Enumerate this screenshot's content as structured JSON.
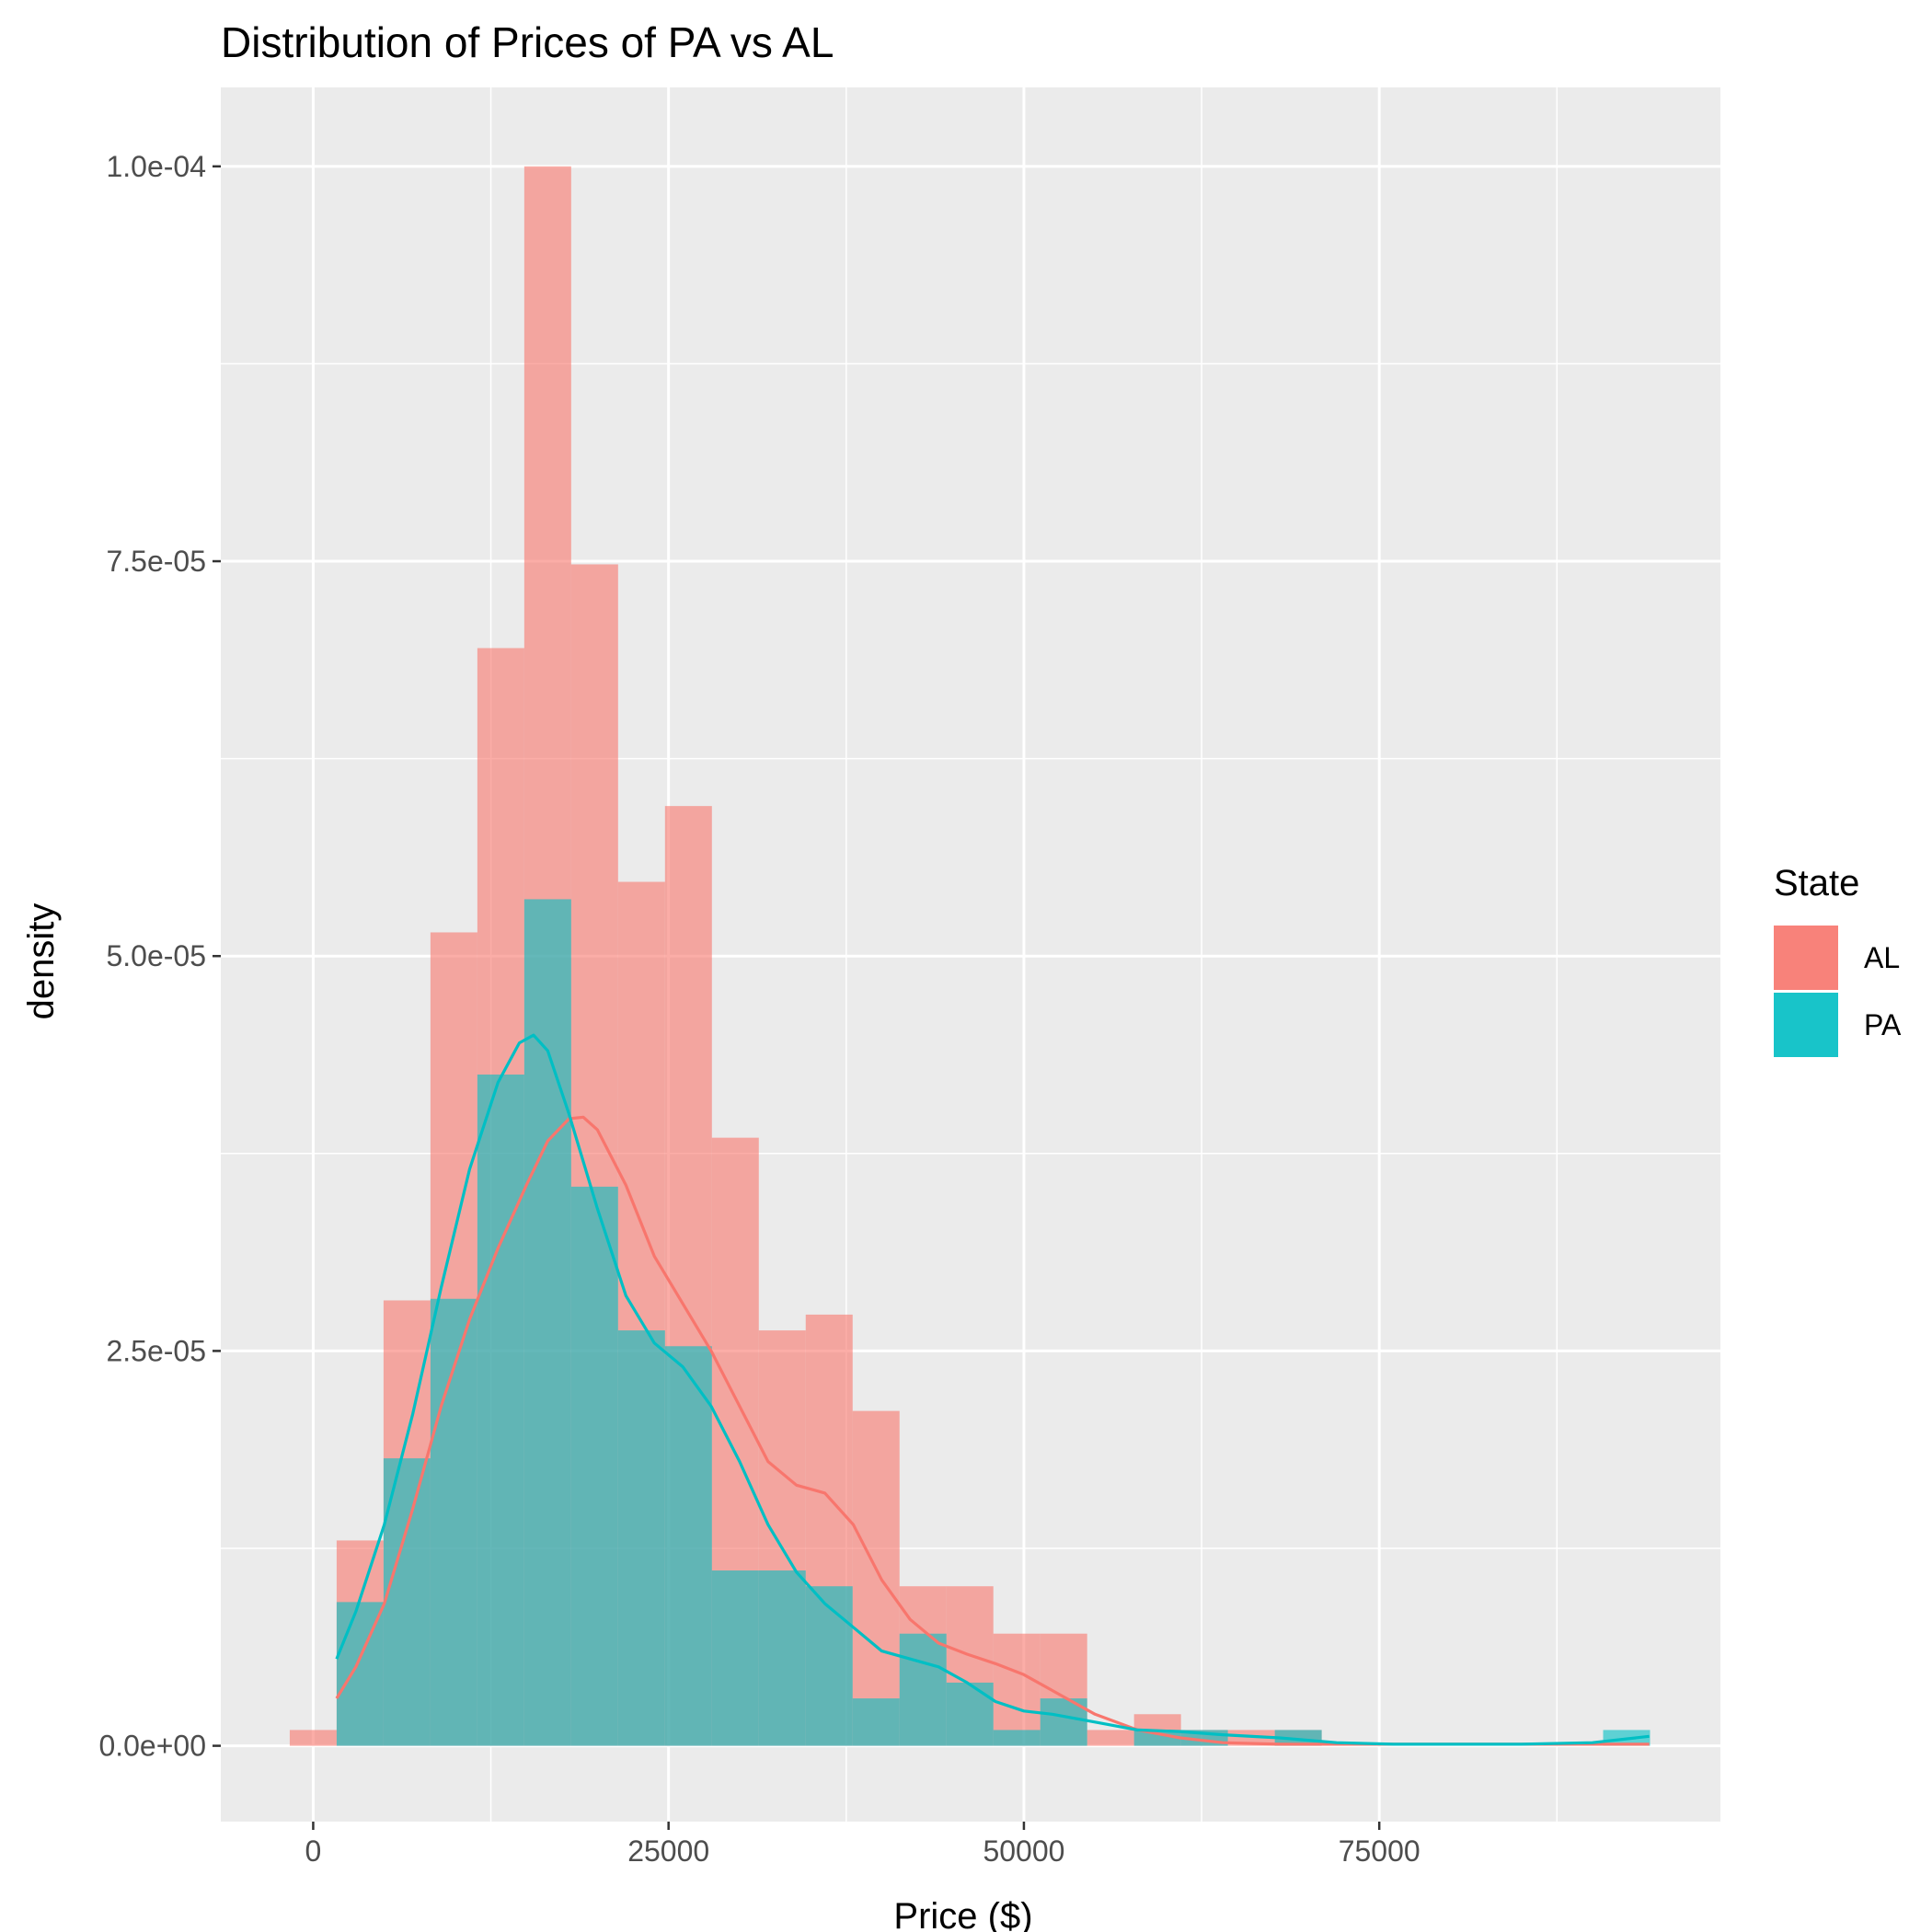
{
  "chart_data": {
    "type": "histogram",
    "title": "Distribution of Prices of PA vs AL",
    "xlabel": "Price ($)",
    "ylabel": "density",
    "xlim": [
      -6500,
      99000
    ],
    "ylim": [
      -4.8e-06,
      0.000105
    ],
    "x_ticks": [
      {
        "value": 0,
        "label": "0"
      },
      {
        "value": 25000,
        "label": "25000"
      },
      {
        "value": 50000,
        "label": "50000"
      },
      {
        "value": 75000,
        "label": "75000"
      }
    ],
    "x_minor": [
      12500,
      37500,
      62500,
      87500
    ],
    "y_ticks": [
      {
        "value": 0,
        "label": "0.0e+00"
      },
      {
        "value": 2.5e-05,
        "label": "2.5e-05"
      },
      {
        "value": 5e-05,
        "label": "5.0e-05"
      },
      {
        "value": 7.5e-05,
        "label": "7.5e-05"
      },
      {
        "value": 0.0001,
        "label": "1.0e-04"
      }
    ],
    "y_minor": [
      1.25e-05,
      3.75e-05,
      6.25e-05,
      8.75e-05
    ],
    "grid": true,
    "legend": {
      "title": "State",
      "position": "right"
    },
    "bin_start": -1650,
    "bin_width": 3300,
    "series": [
      {
        "name": "AL",
        "color": "#F8766D",
        "histogram": [
          1e-06,
          1.3e-05,
          2.82e-05,
          5.15e-05,
          6.95e-05,
          0.0001,
          7.48e-05,
          5.47e-05,
          5.95e-05,
          3.85e-05,
          2.63e-05,
          2.73e-05,
          2.12e-05,
          1.01e-05,
          1.01e-05,
          7.1e-06,
          7.1e-06,
          1e-06,
          2e-06,
          1e-06,
          1e-06,
          1e-06,
          0,
          0,
          0,
          0,
          0,
          0,
          0
        ],
        "density_x": [
          1650,
          3000,
          5000,
          7000,
          9000,
          11000,
          13000,
          15000,
          16500,
          18000,
          19000,
          20000,
          22000,
          24000,
          26000,
          28000,
          30000,
          32000,
          34000,
          36000,
          38000,
          40000,
          42000,
          44000,
          46000,
          48000,
          50000,
          52000,
          55000,
          58000,
          61000,
          64000,
          68000,
          72000,
          76000,
          80000,
          85000,
          90000,
          94000
        ],
        "density_y": [
          3e-06,
          5e-06,
          9e-06,
          1.5e-05,
          2.15e-05,
          2.7e-05,
          3.15e-05,
          3.55e-05,
          3.83e-05,
          3.97e-05,
          3.98e-05,
          3.9e-05,
          3.55e-05,
          3.1e-05,
          2.8e-05,
          2.5e-05,
          2.15e-05,
          1.8e-05,
          1.65e-05,
          1.6e-05,
          1.4e-05,
          1.05e-05,
          8e-06,
          6.5e-06,
          5.8e-06,
          5.2e-06,
          4.5e-06,
          3.5e-06,
          2e-06,
          1e-06,
          5e-07,
          2e-07,
          1e-07,
          1e-07,
          1e-07,
          1e-07,
          1e-07,
          1e-07,
          1e-07
        ]
      },
      {
        "name": "PA",
        "color": "#00BFC4",
        "histogram": [
          0,
          9.1e-06,
          1.82e-05,
          2.83e-05,
          4.25e-05,
          5.36e-05,
          3.54e-05,
          2.63e-05,
          2.53e-05,
          1.11e-05,
          1.11e-05,
          1.01e-05,
          3e-06,
          7.1e-06,
          4e-06,
          1e-06,
          3e-06,
          0,
          1e-06,
          1e-06,
          0,
          1e-06,
          0,
          0,
          0,
          0,
          0,
          0,
          1e-06
        ],
        "density_x": [
          1650,
          3000,
          5000,
          7000,
          9000,
          11000,
          13000,
          14500,
          15500,
          16500,
          18000,
          20000,
          22000,
          24000,
          26000,
          28000,
          30000,
          32000,
          34000,
          36000,
          38000,
          40000,
          42000,
          44000,
          46000,
          48000,
          50000,
          52000,
          55000,
          58000,
          61000,
          64000,
          68000,
          72000,
          76000,
          80000,
          85000,
          90000,
          94000
        ],
        "density_y": [
          5.5e-06,
          8.5e-06,
          1.4e-05,
          2.1e-05,
          2.9e-05,
          3.65e-05,
          4.2e-05,
          4.45e-05,
          4.5e-05,
          4.4e-05,
          4e-05,
          3.4e-05,
          2.85e-05,
          2.55e-05,
          2.4e-05,
          2.15e-05,
          1.8e-05,
          1.4e-05,
          1.1e-05,
          9e-06,
          7.5e-06,
          6e-06,
          5.5e-06,
          5e-06,
          4e-06,
          2.8e-06,
          2.2e-06,
          2e-06,
          1.5e-06,
          1e-06,
          9e-07,
          7e-07,
          5e-07,
          2e-07,
          1e-07,
          1e-07,
          1e-07,
          2e-07,
          6e-07
        ]
      }
    ]
  }
}
